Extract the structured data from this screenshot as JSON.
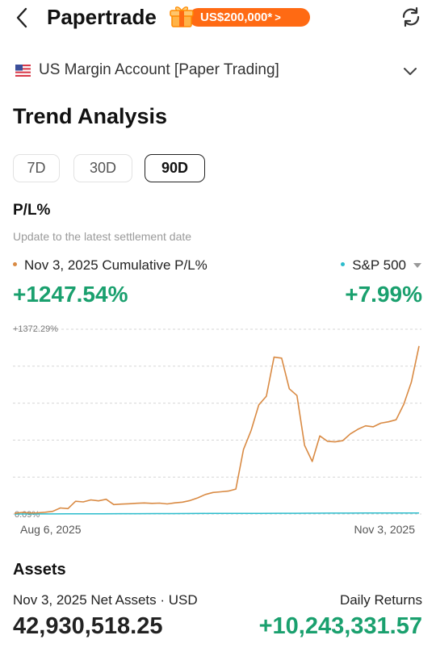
{
  "header": {
    "title": "Papertrade",
    "promo_text": "US$200,000*",
    "promo_chevron": ">"
  },
  "account": {
    "name": "US Margin Account [Paper Trading]"
  },
  "trend": {
    "title": "Trend Analysis",
    "tabs": [
      {
        "label": "7D",
        "active": false
      },
      {
        "label": "30D",
        "active": false
      },
      {
        "label": "90D",
        "active": true
      }
    ],
    "pl_label": "P/L%",
    "update_note": "Update to the latest settlement date",
    "legend_left": "Nov 3, 2025 Cumulative P/L%",
    "legend_right": "S&P 500",
    "value_left": "+1247.54%",
    "value_right": "+7.99%"
  },
  "colors": {
    "portfolio": "#d98a43",
    "benchmark": "#2bbccc",
    "positive": "#1aa06e",
    "promo": "#ff6a13"
  },
  "chart_data": {
    "type": "line",
    "y_top_label": "+1372.29%",
    "y_bottom_label": "0.09%",
    "x_start_label": "Aug 6, 2025",
    "x_end_label": "Nov 3, 2025",
    "ylim": [
      0.09,
      1372.29
    ],
    "grid": true,
    "series": [
      {
        "values": [
          5,
          12,
          8,
          9,
          13,
          20,
          45,
          40,
          95,
          90,
          105,
          98,
          110,
          70,
          74,
          76,
          80,
          82,
          79,
          81,
          75,
          83,
          88,
          100,
          120,
          145,
          160,
          165,
          170,
          185,
          480,
          620,
          810,
          875,
          1165,
          1158,
          930,
          880,
          510,
          390,
          580,
          540,
          536,
          545,
          595,
          630,
          655,
          648,
          675,
          685,
          700,
          815,
          980,
          1247.54
        ]
      },
      {
        "values": [
          0.09,
          0.5,
          0.8,
          1.2,
          1.5,
          1.8,
          2.2,
          2.6,
          3.0,
          3.2,
          3.6,
          4.0,
          4.3,
          4.6,
          5.0,
          5.4,
          5.6,
          6.0,
          6.4,
          6.8,
          7.1,
          7.4,
          7.7,
          7.99
        ]
      }
    ]
  },
  "assets": {
    "title": "Assets",
    "net_label": "Nov 3, 2025 Net Assets · USD",
    "net_value": "42,930,518.25",
    "daily_label": "Daily Returns",
    "daily_value": "+10,243,331.57"
  }
}
